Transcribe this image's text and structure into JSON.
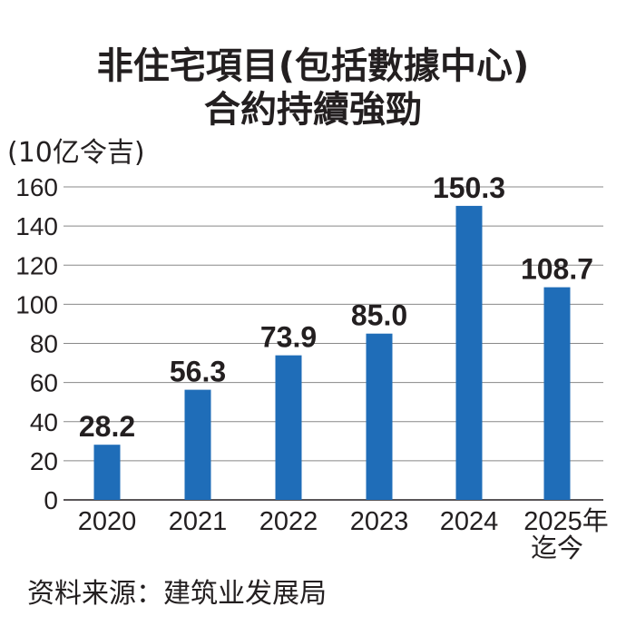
{
  "chart_data": {
    "type": "bar",
    "title": [
      "非住宅項目(包括數據中心)",
      "合約持續強勁"
    ],
    "ylabel": "(10亿令吉)",
    "categories": [
      "2020",
      "2021",
      "2022",
      "2023",
      "2024",
      "2025年\n迄今"
    ],
    "values": [
      28.2,
      56.3,
      73.9,
      85.0,
      150.3,
      108.7
    ],
    "value_labels": [
      "28.2",
      "56.3",
      "73.9",
      "85.0",
      "150.3",
      "108.7"
    ],
    "yticks": [
      0,
      20,
      40,
      60,
      80,
      100,
      120,
      140,
      160
    ],
    "ylim": [
      0,
      160
    ],
    "grid": true,
    "bar_color": "#1f6db8",
    "source": "资料来源：建筑业发展局"
  }
}
